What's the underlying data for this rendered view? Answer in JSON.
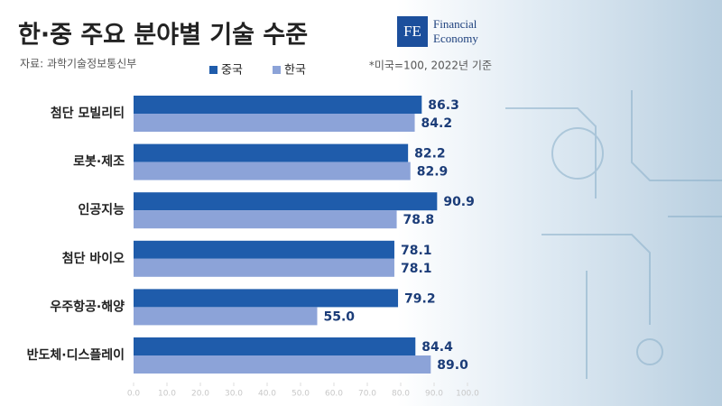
{
  "chart_data": {
    "type": "bar",
    "orientation": "horizontal",
    "title": "한·중 주요 분야별 기술 수준",
    "subtitle": "자료: 과학기술정보통신부",
    "annotation": "*미국=100, 2022년 기준",
    "categories": [
      "첨단 모빌리티",
      "로봇·제조",
      "인공지능",
      "첨단 바이오",
      "우주항공·해양",
      "반도체·디스플레이"
    ],
    "series": [
      {
        "name": "중국",
        "color": "#1f5cab",
        "values": [
          86.3,
          82.2,
          90.9,
          78.1,
          79.2,
          84.4
        ],
        "value_labels": [
          "86.3",
          "82.2",
          "90.9",
          "78.1",
          "79.2",
          "84.4"
        ]
      },
      {
        "name": "한국",
        "color": "#8ca3d8",
        "values": [
          84.2,
          82.9,
          78.8,
          78.1,
          55.0,
          89.0
        ],
        "value_labels": [
          "84.2",
          "82.9",
          "78.8",
          "78.1",
          "55.0",
          "89.0"
        ]
      }
    ],
    "xlim": [
      0,
      100
    ],
    "xticks": [
      {
        "value": 0,
        "label": "0.0"
      },
      {
        "value": 10,
        "label": "10.0"
      },
      {
        "value": 20,
        "label": "20.0"
      },
      {
        "value": 30,
        "label": "30.0"
      },
      {
        "value": 40,
        "label": "40.0"
      },
      {
        "value": 50,
        "label": "50.0"
      },
      {
        "value": 60,
        "label": "60.0"
      },
      {
        "value": 70,
        "label": "70.0"
      },
      {
        "value": 80,
        "label": "80.0"
      },
      {
        "value": 90,
        "label": "90.0"
      },
      {
        "value": 100,
        "label": "100.0"
      }
    ],
    "legend": "top"
  },
  "logo": {
    "mark": "FE",
    "lines": [
      "Financial",
      "Economy"
    ]
  }
}
